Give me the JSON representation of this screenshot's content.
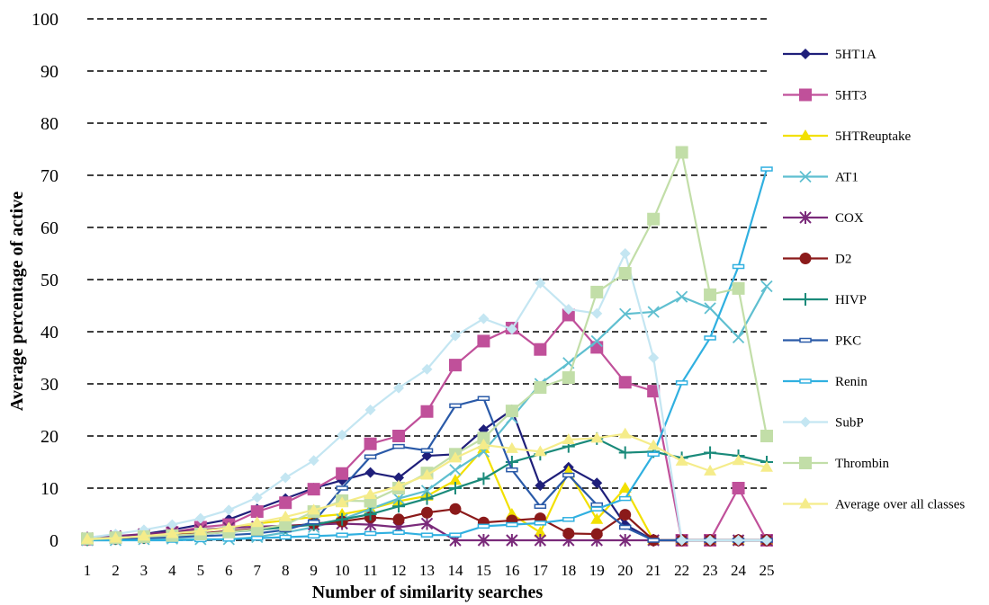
{
  "chart_data": {
    "type": "line",
    "title": "",
    "xlabel": "Number of similarity searches",
    "ylabel": "Average percentage of active",
    "x": [
      1,
      2,
      3,
      4,
      5,
      6,
      7,
      8,
      9,
      10,
      11,
      12,
      13,
      14,
      15,
      16,
      17,
      18,
      19,
      20,
      21,
      22,
      23,
      24,
      25
    ],
    "ylim": [
      0,
      100
    ],
    "yticks": [
      0,
      10,
      20,
      30,
      40,
      50,
      60,
      70,
      80,
      90,
      100
    ],
    "grid": "horizontal dashed",
    "legend_position": "right",
    "series": [
      {
        "name": "5HT1A",
        "color": "#1f1f7a",
        "marker": "diamond",
        "values": [
          0.2,
          0.6,
          1.2,
          2,
          3,
          4,
          6,
          8,
          10,
          11.5,
          13,
          12,
          16.2,
          16.5,
          21.2,
          25,
          10.5,
          14,
          11,
          3,
          0,
          0,
          0,
          0,
          0
        ]
      },
      {
        "name": "5HT3",
        "color": "#c0509a",
        "marker": "square",
        "values": [
          0.2,
          0.5,
          1,
          1.5,
          2.5,
          3,
          5.5,
          7.2,
          9.8,
          12.8,
          18.5,
          20,
          24.7,
          33.6,
          38.2,
          40.7,
          36.6,
          43.2,
          37,
          30.3,
          28.6,
          0,
          0,
          10,
          0
        ]
      },
      {
        "name": "5HTReuptake",
        "color": "#f2e000",
        "marker": "triangle",
        "values": [
          0.1,
          0.3,
          0.8,
          1.2,
          1.8,
          2.4,
          3.2,
          3.8,
          4.5,
          5,
          6,
          7.5,
          8.5,
          11.5,
          17.6,
          5,
          1.5,
          13.2,
          4,
          10,
          0,
          0,
          0,
          0,
          0
        ]
      },
      {
        "name": "AT1",
        "color": "#5fbfd0",
        "marker": "x",
        "values": [
          0,
          0,
          0.2,
          0.3,
          0.2,
          0.2,
          0.6,
          1.5,
          2.5,
          4,
          6,
          8,
          9.5,
          13.5,
          17,
          23.5,
          30,
          34,
          38.2,
          43.4,
          43.8,
          46.7,
          44.5,
          38.9,
          48.7
        ]
      },
      {
        "name": "COX",
        "color": "#7a2a7a",
        "marker": "star",
        "values": [
          0.4,
          0.8,
          1.2,
          1.6,
          2,
          2.4,
          2.6,
          2.8,
          3,
          3.2,
          3,
          2.5,
          3.2,
          0,
          0,
          0,
          0,
          0,
          0,
          0,
          0,
          0,
          0,
          0,
          0
        ]
      },
      {
        "name": "D2",
        "color": "#8b1a1a",
        "marker": "circle",
        "values": [
          0.1,
          0.3,
          0.5,
          1,
          1.3,
          1.8,
          2.2,
          2.6,
          3.2,
          3.6,
          4.4,
          4,
          5.3,
          6,
          3.4,
          3.8,
          4.2,
          1.3,
          1.2,
          4.9,
          0,
          0,
          0,
          0,
          0
        ]
      },
      {
        "name": "HIVP",
        "color": "#1a8a7a",
        "marker": "plus",
        "values": [
          0.1,
          0.3,
          0.5,
          0.8,
          1.2,
          1.6,
          2,
          2.5,
          3,
          4,
          5,
          6.5,
          8,
          10,
          11.8,
          15,
          16.5,
          18,
          19.5,
          16.8,
          17,
          15.8,
          16.8,
          16.2,
          15
        ]
      },
      {
        "name": "PKC",
        "color": "#2a5aa8",
        "marker": "dash",
        "values": [
          0.1,
          0.2,
          0.4,
          0.6,
          0.8,
          1,
          1.3,
          2,
          3.5,
          10,
          16,
          18,
          17.2,
          25.8,
          27.2,
          13.5,
          6.5,
          12.5,
          6.8,
          2.5,
          0,
          0,
          0,
          0,
          0
        ]
      },
      {
        "name": "Renin",
        "color": "#30b0e0",
        "marker": "dash",
        "values": [
          0,
          0,
          0,
          0,
          0.1,
          0.2,
          0.4,
          0.6,
          0.8,
          1,
          1.3,
          1.5,
          1,
          1,
          2.7,
          3,
          3.3,
          4,
          6,
          8,
          16.5,
          30.2,
          38.8,
          52.5,
          71.2
        ]
      },
      {
        "name": "SubP",
        "color": "#c4e6f2",
        "marker": "diamond",
        "values": [
          0.5,
          1.2,
          2,
          3,
          4.2,
          5.8,
          8.2,
          12,
          15.3,
          20.2,
          25,
          29.2,
          32.8,
          39.2,
          42.5,
          40.5,
          49.3,
          44.3,
          43.5,
          55,
          35,
          0,
          0,
          0,
          0
        ]
      },
      {
        "name": "Thrombin",
        "color": "#c2dea8",
        "marker": "square",
        "values": [
          0.3,
          0.5,
          0.7,
          0.9,
          1.2,
          1.6,
          2.1,
          3,
          5.5,
          7.6,
          7.5,
          10,
          12.9,
          16.5,
          19.6,
          24.8,
          29.3,
          31.2,
          47.6,
          51.2,
          61.6,
          74.4,
          47.1,
          48.3,
          20
        ]
      },
      {
        "name": "Average over all classes",
        "color": "#f5ec8a",
        "marker": "triangle",
        "values": [
          0.2,
          0.4,
          0.8,
          1.3,
          1.8,
          2.4,
          3.4,
          4.5,
          5.8,
          7.2,
          8.8,
          10.4,
          12.5,
          15.8,
          18.3,
          17.6,
          17,
          19.3,
          19.6,
          20.4,
          18.2,
          15.2,
          13.3,
          15.3,
          14
        ]
      }
    ]
  }
}
